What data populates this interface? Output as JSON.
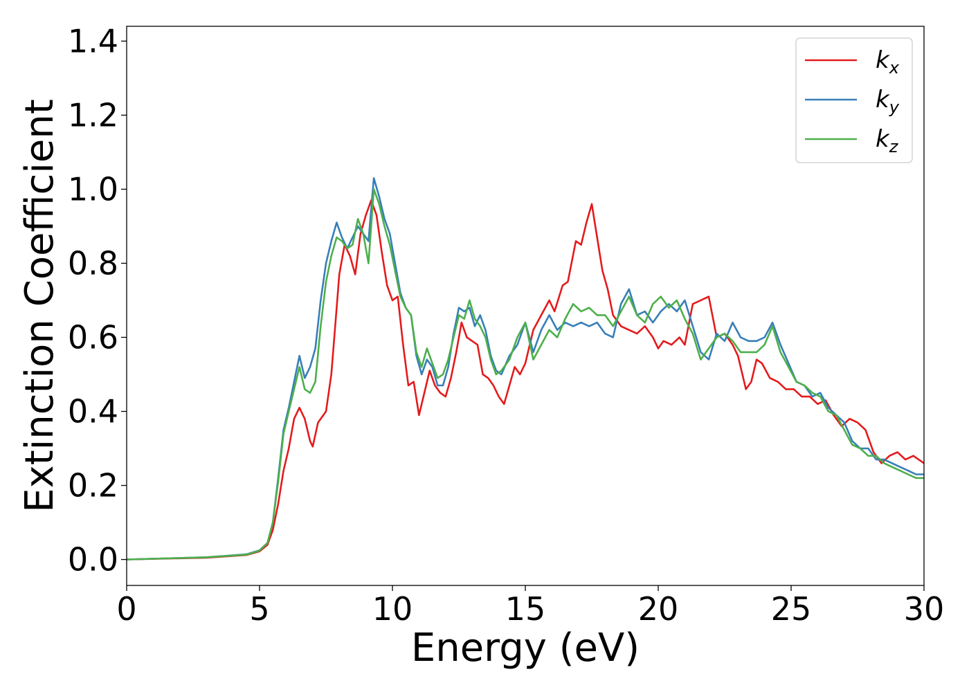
{
  "chart_data": {
    "type": "line",
    "title": "",
    "xlabel": "Energy (eV)",
    "ylabel": "Extinction Coefficient",
    "xlim": [
      0,
      30
    ],
    "ylim": [
      -0.07,
      1.44
    ],
    "xticks": [
      0,
      5,
      10,
      15,
      20,
      25,
      30
    ],
    "xtick_labels": [
      "0",
      "5",
      "10",
      "15",
      "20",
      "25",
      "30"
    ],
    "yticks": [
      0.0,
      0.2,
      0.4,
      0.6,
      0.8,
      1.0,
      1.2,
      1.4
    ],
    "ytick_labels": [
      "0.0",
      "0.2",
      "0.4",
      "0.6",
      "0.8",
      "1.0",
      "1.2",
      "1.4"
    ],
    "grid": false,
    "legend_position": "top-right",
    "series": [
      {
        "name": "k_x",
        "legend_base": "k",
        "legend_sub": "x",
        "color": "#e41a1c",
        "points": [
          [
            0,
            0.0
          ],
          [
            3,
            0.005
          ],
          [
            4.5,
            0.012
          ],
          [
            5,
            0.022
          ],
          [
            5.3,
            0.04
          ],
          [
            5.5,
            0.08
          ],
          [
            5.7,
            0.15
          ],
          [
            5.9,
            0.24
          ],
          [
            6.1,
            0.3
          ],
          [
            6.3,
            0.38
          ],
          [
            6.5,
            0.41
          ],
          [
            6.7,
            0.38
          ],
          [
            6.9,
            0.32
          ],
          [
            7.0,
            0.305
          ],
          [
            7.2,
            0.37
          ],
          [
            7.5,
            0.4
          ],
          [
            7.7,
            0.5
          ],
          [
            7.9,
            0.68
          ],
          [
            8.0,
            0.77
          ],
          [
            8.2,
            0.85
          ],
          [
            8.4,
            0.82
          ],
          [
            8.6,
            0.77
          ],
          [
            8.8,
            0.88
          ],
          [
            9.0,
            0.93
          ],
          [
            9.2,
            0.97
          ],
          [
            9.4,
            0.93
          ],
          [
            9.6,
            0.83
          ],
          [
            9.8,
            0.74
          ],
          [
            10.0,
            0.7
          ],
          [
            10.2,
            0.71
          ],
          [
            10.4,
            0.58
          ],
          [
            10.6,
            0.47
          ],
          [
            10.8,
            0.48
          ],
          [
            11.0,
            0.39
          ],
          [
            11.2,
            0.45
          ],
          [
            11.4,
            0.51
          ],
          [
            11.6,
            0.47
          ],
          [
            11.8,
            0.45
          ],
          [
            12.0,
            0.44
          ],
          [
            12.2,
            0.49
          ],
          [
            12.4,
            0.56
          ],
          [
            12.6,
            0.64
          ],
          [
            12.8,
            0.6
          ],
          [
            13.0,
            0.59
          ],
          [
            13.2,
            0.58
          ],
          [
            13.4,
            0.5
          ],
          [
            13.6,
            0.49
          ],
          [
            13.8,
            0.47
          ],
          [
            14.0,
            0.44
          ],
          [
            14.2,
            0.42
          ],
          [
            14.4,
            0.47
          ],
          [
            14.6,
            0.52
          ],
          [
            14.8,
            0.5
          ],
          [
            15.0,
            0.53
          ],
          [
            15.3,
            0.62
          ],
          [
            15.6,
            0.66
          ],
          [
            15.9,
            0.7
          ],
          [
            16.1,
            0.67
          ],
          [
            16.4,
            0.74
          ],
          [
            16.6,
            0.75
          ],
          [
            16.9,
            0.86
          ],
          [
            17.1,
            0.85
          ],
          [
            17.3,
            0.91
          ],
          [
            17.5,
            0.96
          ],
          [
            17.7,
            0.87
          ],
          [
            17.9,
            0.78
          ],
          [
            18.1,
            0.73
          ],
          [
            18.3,
            0.66
          ],
          [
            18.6,
            0.63
          ],
          [
            18.9,
            0.62
          ],
          [
            19.2,
            0.61
          ],
          [
            19.5,
            0.63
          ],
          [
            19.8,
            0.6
          ],
          [
            20.0,
            0.57
          ],
          [
            20.2,
            0.59
          ],
          [
            20.5,
            0.58
          ],
          [
            20.8,
            0.6
          ],
          [
            21.0,
            0.58
          ],
          [
            21.3,
            0.69
          ],
          [
            21.6,
            0.7
          ],
          [
            21.9,
            0.71
          ],
          [
            22.2,
            0.6
          ],
          [
            22.5,
            0.61
          ],
          [
            22.8,
            0.58
          ],
          [
            23.0,
            0.55
          ],
          [
            23.3,
            0.46
          ],
          [
            23.5,
            0.48
          ],
          [
            23.7,
            0.54
          ],
          [
            23.9,
            0.53
          ],
          [
            24.2,
            0.49
          ],
          [
            24.5,
            0.48
          ],
          [
            24.8,
            0.46
          ],
          [
            25.1,
            0.46
          ],
          [
            25.4,
            0.44
          ],
          [
            25.7,
            0.44
          ],
          [
            26.0,
            0.42
          ],
          [
            26.3,
            0.43
          ],
          [
            26.6,
            0.39
          ],
          [
            26.9,
            0.36
          ],
          [
            27.2,
            0.38
          ],
          [
            27.5,
            0.37
          ],
          [
            27.8,
            0.35
          ],
          [
            28.1,
            0.29
          ],
          [
            28.4,
            0.26
          ],
          [
            28.7,
            0.28
          ],
          [
            29.0,
            0.29
          ],
          [
            29.3,
            0.27
          ],
          [
            29.6,
            0.28
          ],
          [
            30.0,
            0.26
          ]
        ]
      },
      {
        "name": "k_y",
        "legend_base": "k",
        "legend_sub": "y",
        "color": "#377eb8",
        "points": [
          [
            0,
            0.0
          ],
          [
            3,
            0.006
          ],
          [
            4.5,
            0.014
          ],
          [
            5,
            0.025
          ],
          [
            5.3,
            0.045
          ],
          [
            5.5,
            0.1
          ],
          [
            5.7,
            0.22
          ],
          [
            5.9,
            0.35
          ],
          [
            6.1,
            0.41
          ],
          [
            6.3,
            0.48
          ],
          [
            6.5,
            0.55
          ],
          [
            6.7,
            0.49
          ],
          [
            6.9,
            0.52
          ],
          [
            7.1,
            0.57
          ],
          [
            7.3,
            0.7
          ],
          [
            7.5,
            0.8
          ],
          [
            7.7,
            0.86
          ],
          [
            7.9,
            0.91
          ],
          [
            8.1,
            0.87
          ],
          [
            8.3,
            0.84
          ],
          [
            8.5,
            0.87
          ],
          [
            8.7,
            0.9
          ],
          [
            8.9,
            0.88
          ],
          [
            9.1,
            0.86
          ],
          [
            9.3,
            1.03
          ],
          [
            9.5,
            0.98
          ],
          [
            9.7,
            0.92
          ],
          [
            9.9,
            0.88
          ],
          [
            10.1,
            0.8
          ],
          [
            10.3,
            0.72
          ],
          [
            10.5,
            0.68
          ],
          [
            10.7,
            0.66
          ],
          [
            10.9,
            0.55
          ],
          [
            11.1,
            0.5
          ],
          [
            11.3,
            0.54
          ],
          [
            11.5,
            0.52
          ],
          [
            11.7,
            0.47
          ],
          [
            11.9,
            0.47
          ],
          [
            12.1,
            0.52
          ],
          [
            12.3,
            0.61
          ],
          [
            12.5,
            0.68
          ],
          [
            12.7,
            0.67
          ],
          [
            12.9,
            0.68
          ],
          [
            13.1,
            0.63
          ],
          [
            13.3,
            0.66
          ],
          [
            13.5,
            0.62
          ],
          [
            13.7,
            0.55
          ],
          [
            13.9,
            0.51
          ],
          [
            14.1,
            0.5
          ],
          [
            14.4,
            0.55
          ],
          [
            14.7,
            0.58
          ],
          [
            15.0,
            0.64
          ],
          [
            15.3,
            0.56
          ],
          [
            15.6,
            0.62
          ],
          [
            15.9,
            0.66
          ],
          [
            16.2,
            0.62
          ],
          [
            16.5,
            0.64
          ],
          [
            16.8,
            0.63
          ],
          [
            17.1,
            0.64
          ],
          [
            17.4,
            0.63
          ],
          [
            17.7,
            0.64
          ],
          [
            18.0,
            0.61
          ],
          [
            18.3,
            0.6
          ],
          [
            18.6,
            0.69
          ],
          [
            18.9,
            0.73
          ],
          [
            19.2,
            0.66
          ],
          [
            19.5,
            0.67
          ],
          [
            19.8,
            0.64
          ],
          [
            20.1,
            0.67
          ],
          [
            20.4,
            0.69
          ],
          [
            20.7,
            0.67
          ],
          [
            21.0,
            0.7
          ],
          [
            21.3,
            0.63
          ],
          [
            21.6,
            0.56
          ],
          [
            21.9,
            0.54
          ],
          [
            22.2,
            0.61
          ],
          [
            22.5,
            0.59
          ],
          [
            22.8,
            0.64
          ],
          [
            23.1,
            0.6
          ],
          [
            23.4,
            0.59
          ],
          [
            23.7,
            0.59
          ],
          [
            24.0,
            0.6
          ],
          [
            24.3,
            0.64
          ],
          [
            24.6,
            0.58
          ],
          [
            24.9,
            0.53
          ],
          [
            25.2,
            0.48
          ],
          [
            25.5,
            0.47
          ],
          [
            25.8,
            0.44
          ],
          [
            26.1,
            0.45
          ],
          [
            26.4,
            0.41
          ],
          [
            26.7,
            0.39
          ],
          [
            27.0,
            0.37
          ],
          [
            27.3,
            0.32
          ],
          [
            27.6,
            0.3
          ],
          [
            27.9,
            0.3
          ],
          [
            28.2,
            0.27
          ],
          [
            28.5,
            0.27
          ],
          [
            28.8,
            0.26
          ],
          [
            29.1,
            0.25
          ],
          [
            29.4,
            0.24
          ],
          [
            29.7,
            0.23
          ],
          [
            30.0,
            0.23
          ]
        ]
      },
      {
        "name": "k_z",
        "legend_base": "k",
        "legend_sub": "z",
        "color": "#4daf4a",
        "points": [
          [
            0,
            0.0
          ],
          [
            3,
            0.006
          ],
          [
            4.5,
            0.013
          ],
          [
            5,
            0.024
          ],
          [
            5.3,
            0.045
          ],
          [
            5.5,
            0.1
          ],
          [
            5.7,
            0.21
          ],
          [
            5.9,
            0.34
          ],
          [
            6.1,
            0.4
          ],
          [
            6.3,
            0.46
          ],
          [
            6.5,
            0.52
          ],
          [
            6.7,
            0.46
          ],
          [
            6.9,
            0.45
          ],
          [
            7.1,
            0.48
          ],
          [
            7.3,
            0.63
          ],
          [
            7.5,
            0.75
          ],
          [
            7.7,
            0.82
          ],
          [
            7.9,
            0.87
          ],
          [
            8.1,
            0.86
          ],
          [
            8.3,
            0.84
          ],
          [
            8.5,
            0.85
          ],
          [
            8.7,
            0.92
          ],
          [
            8.9,
            0.88
          ],
          [
            9.1,
            0.8
          ],
          [
            9.3,
            1.0
          ],
          [
            9.5,
            0.96
          ],
          [
            9.7,
            0.9
          ],
          [
            9.9,
            0.85
          ],
          [
            10.1,
            0.78
          ],
          [
            10.3,
            0.71
          ],
          [
            10.5,
            0.68
          ],
          [
            10.7,
            0.66
          ],
          [
            10.9,
            0.56
          ],
          [
            11.1,
            0.52
          ],
          [
            11.3,
            0.57
          ],
          [
            11.5,
            0.53
          ],
          [
            11.7,
            0.49
          ],
          [
            11.9,
            0.5
          ],
          [
            12.1,
            0.54
          ],
          [
            12.3,
            0.6
          ],
          [
            12.5,
            0.66
          ],
          [
            12.7,
            0.65
          ],
          [
            12.9,
            0.7
          ],
          [
            13.1,
            0.65
          ],
          [
            13.3,
            0.63
          ],
          [
            13.5,
            0.6
          ],
          [
            13.7,
            0.54
          ],
          [
            13.9,
            0.5
          ],
          [
            14.1,
            0.51
          ],
          [
            14.4,
            0.54
          ],
          [
            14.7,
            0.6
          ],
          [
            15.0,
            0.64
          ],
          [
            15.3,
            0.54
          ],
          [
            15.6,
            0.58
          ],
          [
            15.9,
            0.62
          ],
          [
            16.2,
            0.6
          ],
          [
            16.5,
            0.65
          ],
          [
            16.8,
            0.69
          ],
          [
            17.1,
            0.67
          ],
          [
            17.4,
            0.68
          ],
          [
            17.7,
            0.66
          ],
          [
            18.0,
            0.66
          ],
          [
            18.3,
            0.63
          ],
          [
            18.6,
            0.67
          ],
          [
            18.9,
            0.71
          ],
          [
            19.2,
            0.66
          ],
          [
            19.5,
            0.64
          ],
          [
            19.8,
            0.69
          ],
          [
            20.1,
            0.71
          ],
          [
            20.4,
            0.68
          ],
          [
            20.7,
            0.7
          ],
          [
            21.0,
            0.65
          ],
          [
            21.3,
            0.61
          ],
          [
            21.6,
            0.54
          ],
          [
            21.9,
            0.57
          ],
          [
            22.2,
            0.6
          ],
          [
            22.5,
            0.61
          ],
          [
            22.8,
            0.59
          ],
          [
            23.1,
            0.56
          ],
          [
            23.4,
            0.56
          ],
          [
            23.7,
            0.56
          ],
          [
            24.0,
            0.58
          ],
          [
            24.3,
            0.63
          ],
          [
            24.6,
            0.56
          ],
          [
            24.9,
            0.52
          ],
          [
            25.2,
            0.48
          ],
          [
            25.5,
            0.47
          ],
          [
            25.8,
            0.45
          ],
          [
            26.1,
            0.44
          ],
          [
            26.4,
            0.4
          ],
          [
            26.7,
            0.39
          ],
          [
            27.0,
            0.35
          ],
          [
            27.3,
            0.31
          ],
          [
            27.6,
            0.3
          ],
          [
            27.9,
            0.28
          ],
          [
            28.2,
            0.28
          ],
          [
            28.5,
            0.26
          ],
          [
            28.8,
            0.25
          ],
          [
            29.1,
            0.24
          ],
          [
            29.4,
            0.23
          ],
          [
            29.7,
            0.22
          ],
          [
            30.0,
            0.22
          ]
        ]
      }
    ]
  }
}
